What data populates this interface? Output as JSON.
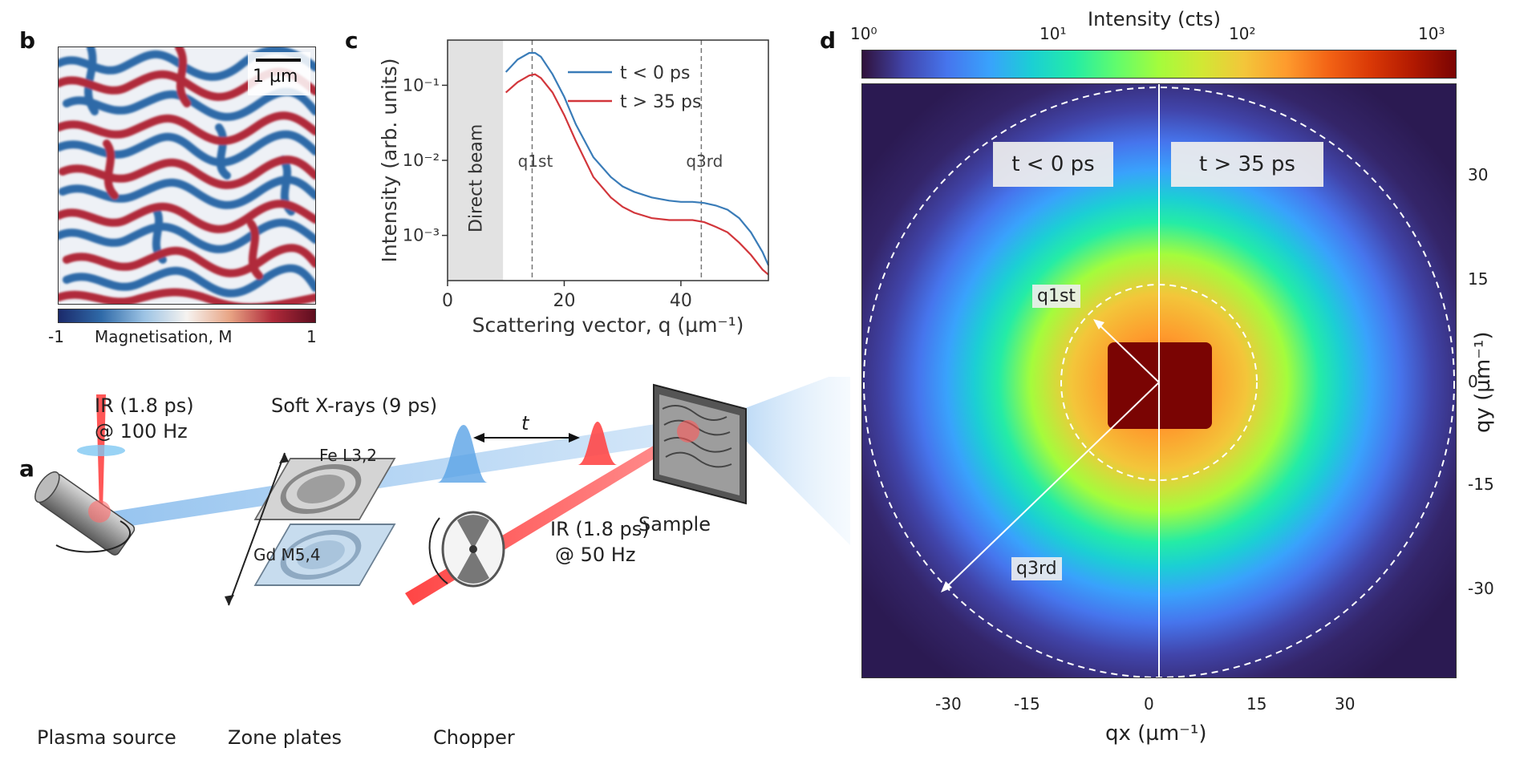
{
  "panels": {
    "a": {
      "letter": "a"
    },
    "b": {
      "letter": "b",
      "scalebar": "1 µm",
      "cb_min": "-1",
      "cb_label": "Magnetisation, M",
      "cb_max": "1"
    },
    "c": {
      "letter": "c"
    },
    "d": {
      "letter": "d"
    }
  },
  "setup": {
    "ir_top_line1": "IR (1.8 ps)",
    "ir_top_line2": "@ 100 Hz",
    "soft_xrays": "Soft X-rays (9 ps)",
    "fe_label": "Fe L3,2",
    "gd_label": "Gd M5,4",
    "delay_label": "t",
    "sample": "Sample",
    "ir_bottom_line1": "IR (1.8 ps)",
    "ir_bottom_line2": "@ 50 Hz",
    "plasma_source": "Plasma source",
    "zone_plates": "Zone plates",
    "chopper": "Chopper"
  },
  "scatter_map": {
    "colorbar_title": "Intensity (cts)",
    "colorbar_ticks": [
      "10⁰",
      "10¹",
      "10²",
      "10³"
    ],
    "left_tag": "t < 0 ps",
    "right_tag": "t > 35 ps",
    "q1_label": "q1st",
    "q3_label": "q3rd",
    "xlabel": "qx (µm⁻¹)",
    "ylabel": "qy (µm⁻¹)",
    "xticks": [
      "-30",
      "-15",
      "0",
      "15",
      "30"
    ],
    "yticks": [
      "30",
      "15",
      "0",
      "-15",
      "-30"
    ]
  },
  "chart_data": {
    "type": "line",
    "xlabel": "Scattering vector, q (µm⁻¹)",
    "ylabel": "Intensity (arb. units)",
    "xlim": [
      0,
      55
    ],
    "ylim": [
      0.00025,
      0.4
    ],
    "yscale": "log",
    "xticks": [
      "0",
      "20",
      "40"
    ],
    "yticks": [
      "10⁻¹",
      "10⁻²",
      "10⁻³"
    ],
    "shaded_region_label": "Direct beam",
    "shaded_region": [
      0,
      9.5
    ],
    "vlines": [
      {
        "x": 14.5,
        "label": "q1st"
      },
      {
        "x": 43.5,
        "label": "q3rd"
      }
    ],
    "legend_position": "top-right",
    "series": [
      {
        "name": "t < 0 ps",
        "color": "#3a7cb8",
        "x": [
          10,
          12,
          14,
          15,
          16,
          18,
          20,
          22,
          25,
          28,
          30,
          32,
          35,
          38,
          40,
          42,
          44,
          46,
          48,
          50,
          52,
          54,
          55
        ],
        "y": [
          0.15,
          0.22,
          0.27,
          0.27,
          0.24,
          0.14,
          0.07,
          0.03,
          0.011,
          0.006,
          0.0045,
          0.0038,
          0.0032,
          0.0029,
          0.0028,
          0.0028,
          0.0027,
          0.0025,
          0.0022,
          0.0017,
          0.0011,
          0.0006,
          0.0004
        ]
      },
      {
        "name": "t > 35 ps",
        "color": "#d2363b",
        "x": [
          10,
          12,
          14,
          15,
          16,
          18,
          20,
          22,
          25,
          28,
          30,
          32,
          35,
          38,
          40,
          42,
          44,
          46,
          48,
          50,
          52,
          54,
          55
        ],
        "y": [
          0.08,
          0.11,
          0.135,
          0.14,
          0.125,
          0.08,
          0.04,
          0.018,
          0.006,
          0.0032,
          0.0024,
          0.002,
          0.0017,
          0.0016,
          0.0016,
          0.0016,
          0.0015,
          0.0013,
          0.0011,
          0.0008,
          0.00055,
          0.00035,
          0.0003
        ]
      }
    ]
  }
}
